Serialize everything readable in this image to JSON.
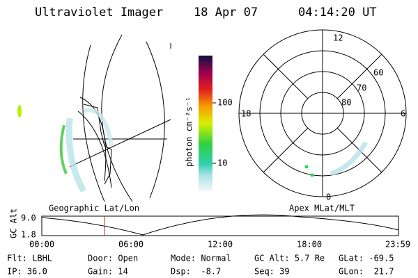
{
  "header": {
    "title": "Ultraviolet Imager",
    "date": "18 Apr 07",
    "time": "04:14:20 UT"
  },
  "colorbar": {
    "label": "photon cm⁻²s⁻¹",
    "ticks": [
      "100",
      "10"
    ]
  },
  "geo_panel": {
    "label": "Geographic Lat/Lon"
  },
  "polar_panel": {
    "label": "Apex MLat/MLT",
    "mlt_labels": [
      "12",
      "18",
      "6",
      "0"
    ],
    "lat_labels": [
      "60",
      "70",
      "80"
    ]
  },
  "altitude_plot": {
    "ylabel": "GC Alt",
    "yticks": [
      "9.0",
      "1.8"
    ],
    "xticks": [
      "00:00",
      "06:00",
      "12:00",
      "18:00",
      "23:59"
    ]
  },
  "footer": {
    "rows": [
      [
        "Flt: LBHL",
        "Door: Open",
        "Mode: Normal",
        "GC Alt: 5.7 Re",
        "GLat: -69.5"
      ],
      [
        "IP: 36.0",
        "Gain: 14",
        "Dsp:  -8.7",
        "Seq: 39",
        "GLon:  21.7"
      ]
    ]
  }
}
